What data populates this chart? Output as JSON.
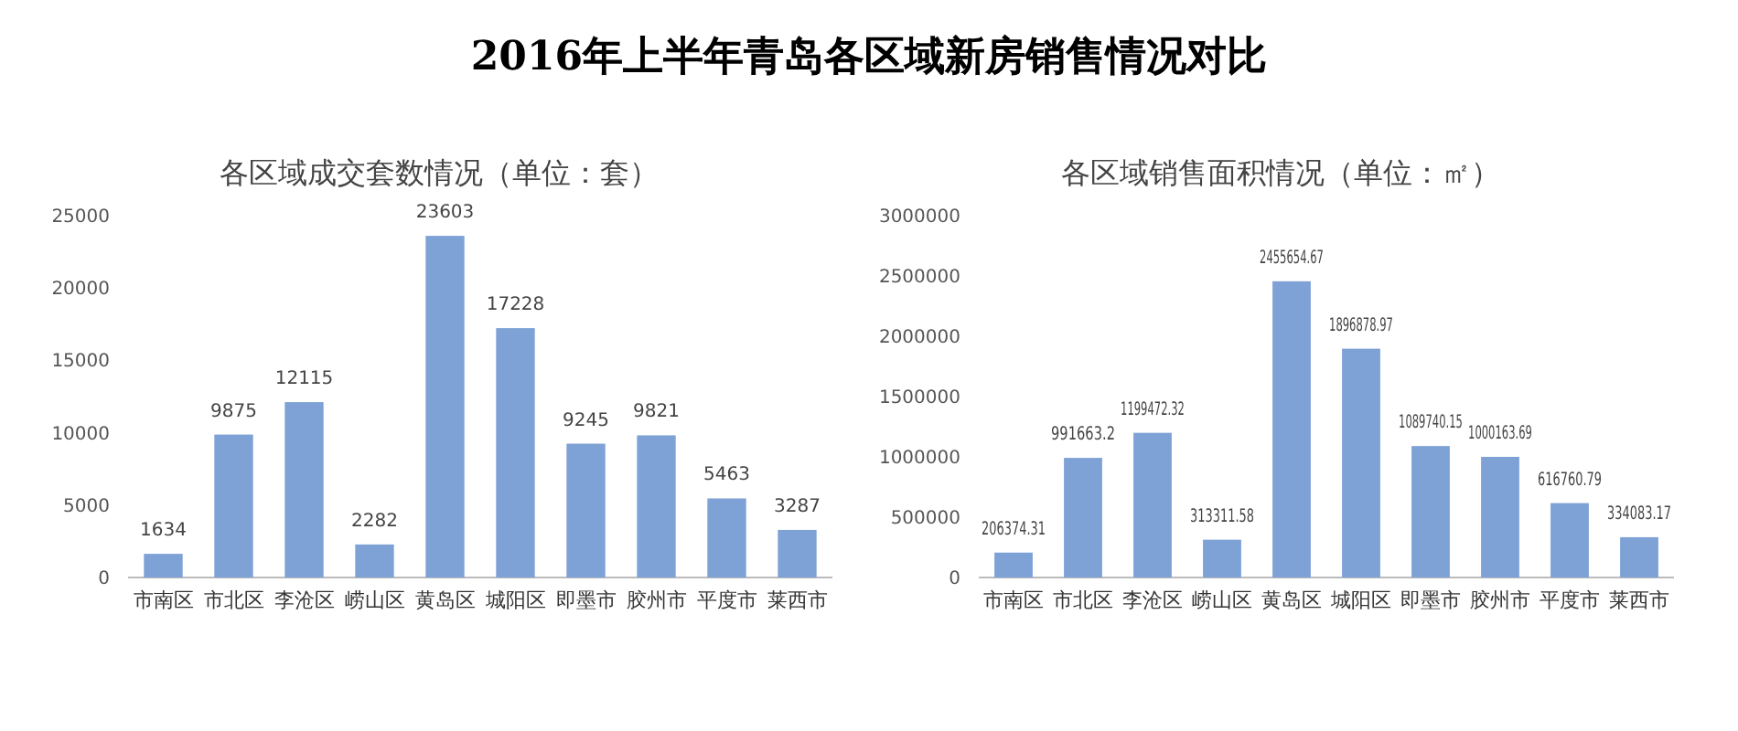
{
  "chart_data": [
    {
      "type": "bar",
      "title": "2016年上半年青岛各区域新房销售情况对比",
      "subtitle": "各区域成交套数情况（单位：套）",
      "categories": [
        "市南区",
        "市北区",
        "李沧区",
        "崂山区",
        "黄岛区",
        "城阳区",
        "即墨市",
        "胶州市",
        "平度市",
        "莱西市"
      ],
      "values": [
        1634,
        9875,
        12115,
        2282,
        23603,
        17228,
        9245,
        9821,
        5463,
        3287
      ],
      "color": "#7ea1d6",
      "ylim": [
        0,
        25000
      ],
      "yticks": [
        0,
        5000,
        10000,
        15000,
        20000,
        25000
      ],
      "data_labels": true
    },
    {
      "type": "bar",
      "subtitle": "各区域销售面积情况（单位：㎡）",
      "categories": [
        "市南区",
        "市北区",
        "李沧区",
        "崂山区",
        "黄岛区",
        "城阳区",
        "即墨市",
        "胶州市",
        "平度市",
        "莱西市"
      ],
      "values": [
        206374.31,
        991663.2,
        1199472.32,
        313311.58,
        2455654.67,
        1896878.97,
        1089740.15,
        1000163.69,
        616760.79,
        334083.17
      ],
      "color": "#7ea1d6",
      "ylim": [
        0,
        3000000
      ],
      "yticks": [
        0,
        500000,
        1000000,
        1500000,
        2000000,
        2500000,
        3000000
      ],
      "data_labels": true
    }
  ]
}
